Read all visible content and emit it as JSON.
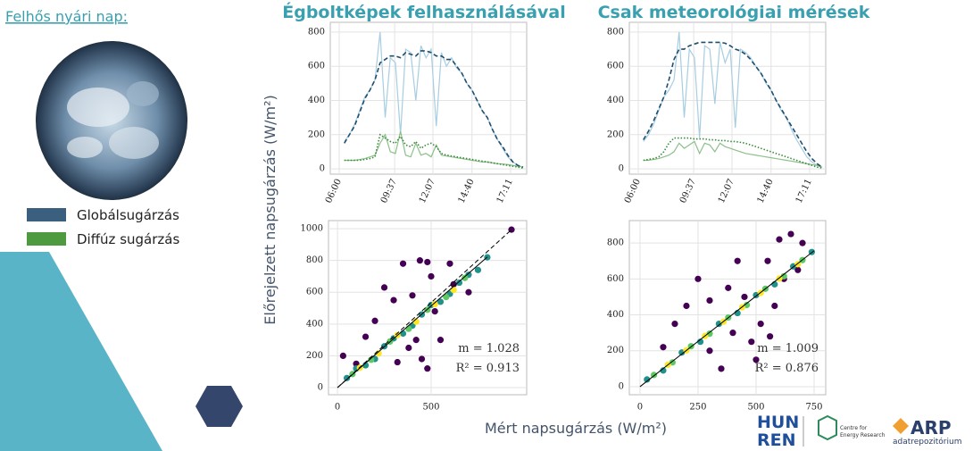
{
  "sidebar": {
    "title": "Felhős nyári nap:",
    "legend": [
      "Globálsugárzás",
      "Diffúz sugárzás"
    ]
  },
  "headings": [
    "Égboltképek felhasználásával",
    "Csak meteorológiai mérések"
  ],
  "y_label": "Előrejelzett napsugárzás (W/m²)",
  "x_label": "Mért napsugárzás (W/m²)",
  "logos": {
    "hun": "HUN",
    "ren": "REN",
    "cer_1": "Centre for",
    "cer_2": "Energy Research",
    "arp": "ARP",
    "arp_sub": "adatrepozitórium"
  },
  "chart_data": [
    {
      "type": "line",
      "grid": true,
      "x": [
        380,
        400,
        420,
        440,
        460,
        480,
        500,
        520,
        540,
        560,
        580,
        600,
        620,
        640,
        660,
        680,
        700,
        720,
        740,
        760,
        780,
        800,
        820,
        840,
        860,
        880,
        900,
        920,
        940,
        960,
        980,
        1000,
        1020,
        1040,
        1060,
        1080
      ],
      "xlim": [
        325,
        1094
      ],
      "xticks": [
        {
          "value": 360,
          "label": "06:00"
        },
        {
          "value": 577,
          "label": "09:37"
        },
        {
          "value": 727,
          "label": "12:07"
        },
        {
          "value": 880,
          "label": "14:40"
        },
        {
          "value": 1031,
          "label": "17:11"
        }
      ],
      "ylim": [
        -31,
        857
      ],
      "yticks": [
        0,
        200,
        400,
        600,
        800
      ],
      "series": [
        {
          "color": "#a6cde2",
          "linestyle": "solid",
          "values": [
            160,
            200,
            260,
            340,
            420,
            460,
            520,
            800,
            300,
            650,
            620,
            200,
            700,
            680,
            400,
            720,
            650,
            700,
            250,
            680,
            600,
            650,
            590,
            560,
            500,
            460,
            400,
            340,
            300,
            230,
            170,
            120,
            70,
            40,
            20,
            10
          ]
        },
        {
          "color": "#8cc08a",
          "linestyle": "solid",
          "values": [
            50,
            50,
            50,
            55,
            60,
            70,
            80,
            150,
            200,
            100,
            90,
            220,
            80,
            70,
            150,
            80,
            90,
            70,
            140,
            80,
            75,
            70,
            65,
            60,
            55,
            50,
            45,
            40,
            40,
            35,
            30,
            28,
            25,
            20,
            15,
            10
          ]
        },
        {
          "color": "#1f4e6e",
          "linestyle": "dashed",
          "values": [
            150,
            200,
            250,
            330,
            410,
            460,
            520,
            620,
            640,
            660,
            660,
            650,
            680,
            670,
            660,
            690,
            690,
            680,
            660,
            660,
            640,
            640,
            600,
            560,
            500,
            460,
            400,
            340,
            300,
            230,
            170,
            130,
            80,
            40,
            20,
            10
          ]
        },
        {
          "color": "#3a8a3a",
          "linestyle": "dotted",
          "values": [
            50,
            50,
            50,
            50,
            55,
            60,
            70,
            200,
            180,
            160,
            150,
            190,
            140,
            130,
            160,
            120,
            140,
            150,
            130,
            90,
            80,
            75,
            70,
            65,
            60,
            55,
            50,
            45,
            40,
            35,
            30,
            25,
            20,
            15,
            10,
            5
          ]
        }
      ]
    },
    {
      "type": "line",
      "grid": true,
      "x": [
        380,
        400,
        420,
        440,
        460,
        480,
        500,
        520,
        540,
        560,
        580,
        600,
        620,
        640,
        660,
        680,
        700,
        720,
        740,
        760,
        780,
        800,
        820,
        840,
        860,
        880,
        900,
        920,
        940,
        960,
        980,
        1000,
        1020,
        1040,
        1060,
        1080
      ],
      "xlim": [
        325,
        1094
      ],
      "xticks": [
        {
          "value": 360,
          "label": "06:00"
        },
        {
          "value": 577,
          "label": "09:37"
        },
        {
          "value": 727,
          "label": "12:07"
        },
        {
          "value": 880,
          "label": "14:40"
        },
        {
          "value": 1031,
          "label": "17:11"
        }
      ],
      "ylim": [
        -31,
        857
      ],
      "yticks": [
        0,
        200,
        400,
        600,
        800
      ],
      "series": [
        {
          "color": "#a6cde2",
          "linestyle": "solid",
          "values": [
            160,
            200,
            260,
            340,
            420,
            460,
            520,
            800,
            300,
            700,
            650,
            180,
            720,
            700,
            380,
            740,
            620,
            700,
            240,
            700,
            680,
            650,
            600,
            560,
            500,
            460,
            400,
            340,
            300,
            230,
            170,
            120,
            70,
            40,
            20,
            10
          ]
        },
        {
          "color": "#8cc08a",
          "linestyle": "solid",
          "values": [
            50,
            50,
            55,
            60,
            70,
            80,
            100,
            150,
            120,
            140,
            160,
            90,
            150,
            140,
            100,
            150,
            130,
            120,
            110,
            100,
            90,
            85,
            80,
            75,
            70,
            65,
            60,
            55,
            50,
            45,
            40,
            35,
            30,
            25,
            20,
            10
          ]
        },
        {
          "color": "#1f4e6e",
          "linestyle": "dashed",
          "values": [
            170,
            220,
            280,
            350,
            420,
            520,
            640,
            700,
            700,
            720,
            730,
            740,
            740,
            740,
            740,
            740,
            735,
            720,
            700,
            690,
            670,
            640,
            600,
            560,
            510,
            460,
            400,
            350,
            300,
            250,
            200,
            150,
            100,
            60,
            30,
            10
          ]
        },
        {
          "color": "#3a8a3a",
          "linestyle": "dotted",
          "values": [
            50,
            55,
            60,
            70,
            100,
            150,
            180,
            180,
            180,
            180,
            175,
            175,
            175,
            170,
            170,
            165,
            165,
            160,
            160,
            155,
            150,
            140,
            130,
            120,
            110,
            100,
            90,
            80,
            70,
            60,
            50,
            40,
            30,
            20,
            10,
            5
          ]
        }
      ]
    },
    {
      "type": "scatter",
      "grid": true,
      "xlim": [
        -48,
        1010
      ],
      "xticks": [
        0,
        500
      ],
      "ylim": [
        -45,
        1051
      ],
      "yticks": [
        0,
        200,
        400,
        600,
        800,
        1000
      ],
      "series": [
        {
          "color": "#440154",
          "x": [
            929,
            440,
            480,
            250,
            150,
            30,
            350,
            400,
            500,
            620,
            320,
            450,
            480,
            550,
            200,
            420,
            600,
            300,
            700,
            100,
            520,
            380
          ],
          "values": [
            994,
            800,
            790,
            630,
            320,
            200,
            780,
            580,
            700,
            650,
            160,
            180,
            120,
            300,
            420,
            300,
            780,
            550,
            600,
            150,
            480,
            250
          ]
        },
        {
          "color": "#21918c",
          "x": [
            50,
            150,
            250,
            350,
            450,
            550,
            650,
            750,
            800,
            100,
            200,
            300,
            400,
            500,
            600,
            700
          ],
          "values": [
            60,
            140,
            260,
            340,
            460,
            540,
            660,
            740,
            820,
            120,
            180,
            310,
            390,
            520,
            590,
            710
          ]
        },
        {
          "color": "#5ec962",
          "x": [
            80,
            180,
            280,
            380,
            480,
            580,
            680
          ],
          "values": [
            85,
            175,
            290,
            370,
            490,
            570,
            690
          ]
        },
        {
          "color": "#fde725",
          "x": [
            120,
            220,
            320,
            420,
            520,
            620
          ],
          "values": [
            125,
            215,
            330,
            415,
            525,
            615
          ]
        }
      ],
      "lines": [
        {
          "color": "#000000",
          "linestyle": "solid",
          "x": [
            0,
            800
          ],
          "values": [
            0,
            822
          ]
        },
        {
          "color": "#000000",
          "linestyle": "dashed",
          "x": [
            0,
            929
          ],
          "values": [
            0,
            994
          ]
        }
      ],
      "annotations": [
        "m = 1.028",
        "R² = 0.913"
      ]
    },
    {
      "type": "scatter",
      "grid": true,
      "xlim": [
        -46,
        800
      ],
      "xticks": [
        0,
        250,
        500,
        750
      ],
      "ylim": [
        -45,
        925
      ],
      "yticks": [
        0,
        200,
        400,
        600,
        800
      ],
      "series": [
        {
          "color": "#440154",
          "x": [
            350,
            400,
            450,
            500,
            550,
            600,
            650,
            700,
            300,
            250,
            200,
            150,
            520,
            580,
            620,
            420,
            380,
            480,
            560,
            680,
            100,
            300
          ],
          "values": [
            100,
            300,
            500,
            150,
            700,
            820,
            850,
            800,
            480,
            600,
            450,
            350,
            350,
            450,
            600,
            700,
            550,
            250,
            280,
            650,
            220,
            200
          ]
        },
        {
          "color": "#21918c",
          "x": [
            30,
            100,
            180,
            260,
            340,
            420,
            500,
            580,
            660,
            740
          ],
          "values": [
            40,
            90,
            190,
            250,
            350,
            410,
            510,
            570,
            670,
            750
          ]
        },
        {
          "color": "#5ec962",
          "x": [
            60,
            140,
            220,
            300,
            380,
            460,
            540,
            620,
            700
          ],
          "values": [
            65,
            135,
            225,
            295,
            385,
            455,
            545,
            615,
            705
          ]
        },
        {
          "color": "#fde725",
          "x": [
            120,
            200,
            280,
            360,
            440,
            520,
            600,
            680
          ],
          "values": [
            122,
            202,
            282,
            362,
            442,
            522,
            602,
            682
          ]
        }
      ],
      "lines": [
        {
          "color": "#000000",
          "linestyle": "solid",
          "x": [
            0,
            750
          ],
          "values": [
            0,
            757
          ]
        }
      ],
      "annotations": [
        "m = 1.009",
        "R² = 0.876"
      ]
    }
  ]
}
